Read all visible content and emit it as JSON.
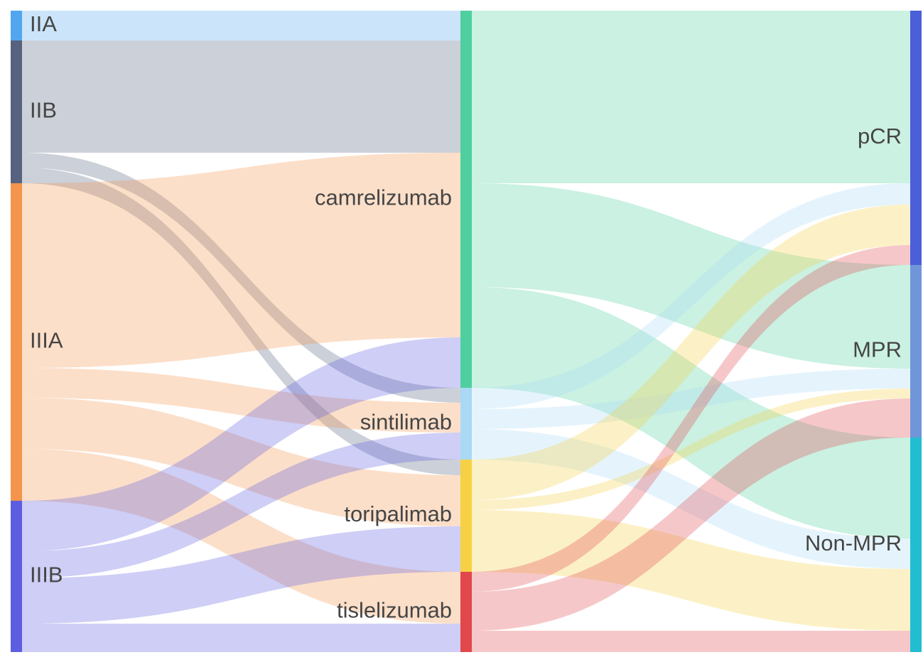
{
  "chart_data": {
    "type": "sankey",
    "nodes": [
      {
        "name": "IIA",
        "color": "#52a6f0"
      },
      {
        "name": "IIB",
        "color": "#56627f"
      },
      {
        "name": "IIIA",
        "color": "#f5944c"
      },
      {
        "name": "IIIB",
        "color": "#5d5de0"
      },
      {
        "name": "camrelizumab",
        "color": "#4fcf9f"
      },
      {
        "name": "sintilimab",
        "color": "#a9d9f5"
      },
      {
        "name": "toripalimab",
        "color": "#f6d143"
      },
      {
        "name": "tislelizumab",
        "color": "#e1474b"
      },
      {
        "name": "pCR",
        "color": "#4a5fd8"
      },
      {
        "name": "MPR",
        "color": "#7096d9"
      },
      {
        "name": "Non-MPR",
        "color": "#22bdd1"
      }
    ],
    "links": [
      {
        "source": 0,
        "target": 4,
        "value": 42
      },
      {
        "source": 1,
        "target": 4,
        "value": 158
      },
      {
        "source": 1,
        "target": 5,
        "value": 21
      },
      {
        "source": 1,
        "target": 6,
        "value": 22
      },
      {
        "source": 2,
        "target": 4,
        "value": 260
      },
      {
        "source": 2,
        "target": 5,
        "value": 42
      },
      {
        "source": 2,
        "target": 6,
        "value": 72
      },
      {
        "source": 2,
        "target": 7,
        "value": 73
      },
      {
        "source": 3,
        "target": 4,
        "value": 71
      },
      {
        "source": 3,
        "target": 5,
        "value": 38
      },
      {
        "source": 3,
        "target": 6,
        "value": 64
      },
      {
        "source": 3,
        "target": 7,
        "value": 40
      },
      {
        "source": 4,
        "target": 8,
        "value": 243
      },
      {
        "source": 4,
        "target": 9,
        "value": 146
      },
      {
        "source": 4,
        "target": 10,
        "value": 142
      },
      {
        "source": 5,
        "target": 8,
        "value": 30
      },
      {
        "source": 5,
        "target": 9,
        "value": 28
      },
      {
        "source": 5,
        "target": 10,
        "value": 43
      },
      {
        "source": 6,
        "target": 8,
        "value": 57
      },
      {
        "source": 6,
        "target": 9,
        "value": 14
      },
      {
        "source": 6,
        "target": 10,
        "value": 87
      },
      {
        "source": 7,
        "target": 8,
        "value": 28
      },
      {
        "source": 7,
        "target": 9,
        "value": 55
      },
      {
        "source": 7,
        "target": 10,
        "value": 30
      }
    ]
  }
}
